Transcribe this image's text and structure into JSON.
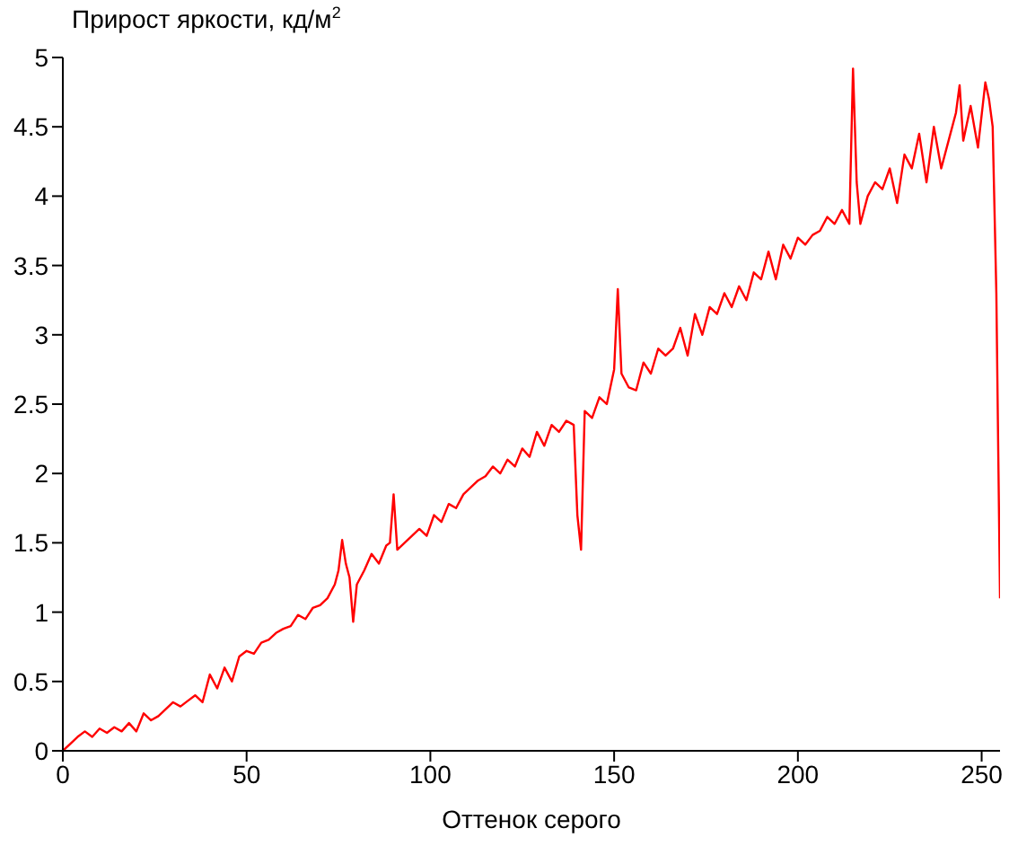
{
  "chart_data": {
    "type": "line",
    "title": "Прирост яркости, кд/м$^{2}$",
    "xlabel": "Оттенок серого",
    "x": [
      0,
      2,
      4,
      6,
      8,
      10,
      12,
      14,
      16,
      18,
      20,
      22,
      24,
      26,
      28,
      30,
      32,
      34,
      36,
      38,
      40,
      42,
      44,
      46,
      48,
      50,
      52,
      54,
      56,
      58,
      60,
      62,
      64,
      66,
      68,
      70,
      72,
      74,
      75,
      76,
      77,
      78,
      79,
      80,
      82,
      84,
      86,
      88,
      89,
      90,
      91,
      93,
      95,
      97,
      99,
      101,
      103,
      105,
      107,
      109,
      111,
      113,
      115,
      117,
      119,
      121,
      123,
      125,
      127,
      129,
      131,
      133,
      135,
      137,
      139,
      140,
      141,
      142,
      144,
      146,
      148,
      150,
      151,
      152,
      154,
      156,
      158,
      160,
      162,
      164,
      166,
      168,
      170,
      172,
      174,
      176,
      178,
      180,
      182,
      184,
      186,
      188,
      190,
      192,
      194,
      196,
      198,
      200,
      202,
      204,
      206,
      208,
      210,
      212,
      214,
      215,
      216,
      217,
      219,
      221,
      223,
      225,
      227,
      229,
      231,
      233,
      235,
      237,
      239,
      241,
      243,
      244,
      245,
      247,
      249,
      251,
      252,
      253,
      254,
      255
    ],
    "series": [
      {
        "color": "#ff0000",
        "values": [
          0,
          0.05,
          0.1,
          0.14,
          0.1,
          0.16,
          0.13,
          0.17,
          0.14,
          0.2,
          0.14,
          0.27,
          0.22,
          0.25,
          0.3,
          0.35,
          0.32,
          0.36,
          0.4,
          0.35,
          0.55,
          0.45,
          0.6,
          0.5,
          0.68,
          0.72,
          0.7,
          0.78,
          0.8,
          0.85,
          0.88,
          0.9,
          0.98,
          0.95,
          1.03,
          1.05,
          1.1,
          1.2,
          1.3,
          1.52,
          1.35,
          1.25,
          0.93,
          1.2,
          1.3,
          1.42,
          1.35,
          1.48,
          1.5,
          1.85,
          1.45,
          1.5,
          1.55,
          1.6,
          1.55,
          1.7,
          1.65,
          1.78,
          1.75,
          1.85,
          1.9,
          1.95,
          1.98,
          2.05,
          2.0,
          2.1,
          2.05,
          2.18,
          2.12,
          2.3,
          2.2,
          2.35,
          2.3,
          2.38,
          2.35,
          1.7,
          1.45,
          2.45,
          2.4,
          2.55,
          2.5,
          2.75,
          3.33,
          2.72,
          2.62,
          2.6,
          2.8,
          2.72,
          2.9,
          2.85,
          2.9,
          3.05,
          2.85,
          3.15,
          3.0,
          3.2,
          3.15,
          3.3,
          3.2,
          3.35,
          3.25,
          3.45,
          3.4,
          3.6,
          3.4,
          3.65,
          3.55,
          3.7,
          3.65,
          3.72,
          3.75,
          3.85,
          3.8,
          3.9,
          3.8,
          4.92,
          4.1,
          3.8,
          4.0,
          4.1,
          4.05,
          4.2,
          3.95,
          4.3,
          4.2,
          4.45,
          4.1,
          4.5,
          4.2,
          4.4,
          4.6,
          4.8,
          4.4,
          4.65,
          4.35,
          4.82,
          4.7,
          4.5,
          3.3,
          1.1
        ]
      }
    ],
    "xlim": [
      0,
      255
    ],
    "xticks": [
      0,
      50,
      100,
      150,
      200,
      250
    ],
    "ylim": [
      0,
      5
    ],
    "yticks": [
      0,
      0.5,
      1,
      1.5,
      2,
      2.5,
      3,
      3.5,
      4,
      4.5,
      5
    ],
    "grid": false,
    "legend": false,
    "marker": "none",
    "line_style": "solid"
  }
}
